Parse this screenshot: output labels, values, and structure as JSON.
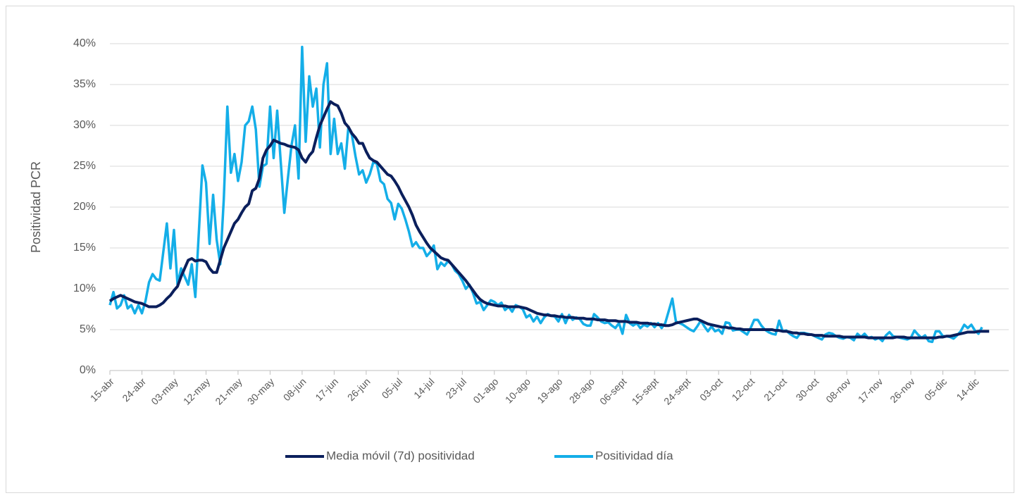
{
  "chart_data": {
    "type": "line",
    "y_label": "Positividad PCR",
    "categories": [
      "15-abr",
      null,
      null,
      null,
      null,
      null,
      null,
      null,
      null,
      "24-abr",
      null,
      null,
      null,
      null,
      null,
      null,
      null,
      null,
      "03-may",
      null,
      null,
      null,
      null,
      null,
      null,
      null,
      null,
      "12-may",
      null,
      null,
      null,
      null,
      null,
      null,
      null,
      null,
      "21-may",
      null,
      null,
      null,
      null,
      null,
      null,
      null,
      null,
      "30-may",
      null,
      null,
      null,
      null,
      null,
      null,
      null,
      null,
      "08-jun",
      null,
      null,
      null,
      null,
      null,
      null,
      null,
      null,
      "17-jun",
      null,
      null,
      null,
      null,
      null,
      null,
      null,
      null,
      "26-jun",
      null,
      null,
      null,
      null,
      null,
      null,
      null,
      null,
      "05-jul",
      null,
      null,
      null,
      null,
      null,
      null,
      null,
      null,
      "14-jul",
      null,
      null,
      null,
      null,
      null,
      null,
      null,
      null,
      "23-jul",
      null,
      null,
      null,
      null,
      null,
      null,
      null,
      null,
      "01-ago",
      null,
      null,
      null,
      null,
      null,
      null,
      null,
      null,
      "10-ago",
      null,
      null,
      null,
      null,
      null,
      null,
      null,
      null,
      "19-ago",
      null,
      null,
      null,
      null,
      null,
      null,
      null,
      null,
      "28-ago",
      null,
      null,
      null,
      null,
      null,
      null,
      null,
      null,
      "06-sept",
      null,
      null,
      null,
      null,
      null,
      null,
      null,
      null,
      "15-sept",
      null,
      null,
      null,
      null,
      null,
      null,
      null,
      null,
      "24-sept",
      null,
      null,
      null,
      null,
      null,
      null,
      null,
      null,
      "03-oct",
      null,
      null,
      null,
      null,
      null,
      null,
      null,
      null,
      "12-oct",
      null,
      null,
      null,
      null,
      null,
      null,
      null,
      null,
      "21-oct",
      null,
      null,
      null,
      null,
      null,
      null,
      null,
      null,
      "30-oct",
      null,
      null,
      null,
      null,
      null,
      null,
      null,
      null,
      "08-nov",
      null,
      null,
      null,
      null,
      null,
      null,
      null,
      null,
      "17-nov",
      null,
      null,
      null,
      null,
      null,
      null,
      null,
      null,
      "26-nov",
      null,
      null,
      null,
      null,
      null,
      null,
      null,
      null,
      "05-dic",
      null,
      null,
      null,
      null,
      null,
      null,
      null,
      null,
      "14-dic",
      null,
      null,
      null,
      null
    ],
    "series": [
      {
        "name": "Media móvil (7d) positividad",
        "color": "#0b1f5c",
        "values": [
          8.5,
          8.8,
          9.0,
          9.2,
          9.0,
          8.8,
          8.6,
          8.4,
          8.3,
          8.2,
          8.0,
          7.8,
          7.8,
          7.8,
          8.0,
          8.3,
          8.8,
          9.2,
          9.8,
          10.3,
          11.5,
          12.5,
          13.5,
          13.7,
          13.4,
          13.5,
          13.5,
          13.3,
          12.5,
          12.0,
          12.0,
          13.5,
          15.0,
          16.0,
          17.0,
          18.0,
          18.5,
          19.3,
          20.0,
          20.4,
          22.0,
          22.3,
          23.5,
          26.0,
          27.0,
          27.5,
          28.2,
          28.0,
          27.8,
          27.7,
          27.5,
          27.4,
          27.3,
          27.0,
          26.0,
          25.5,
          26.3,
          26.8,
          28.5,
          30.0,
          31.0,
          32.0,
          32.9,
          32.6,
          32.4,
          31.5,
          30.3,
          29.8,
          29.0,
          28.5,
          27.8,
          27.8,
          26.8,
          26.0,
          25.7,
          25.5,
          25.0,
          24.5,
          24.0,
          23.8,
          23.2,
          22.5,
          21.6,
          20.8,
          20.0,
          19.0,
          17.8,
          17.0,
          16.3,
          15.6,
          15.0,
          14.6,
          14.2,
          13.8,
          13.6,
          13.5,
          13.0,
          12.5,
          12.0,
          11.5,
          11.0,
          10.4,
          9.8,
          9.2,
          8.7,
          8.4,
          8.2,
          8.1,
          8.0,
          7.9,
          7.9,
          7.9,
          7.8,
          7.8,
          7.8,
          7.8,
          7.7,
          7.6,
          7.4,
          7.2,
          7.0,
          6.9,
          6.8,
          6.8,
          6.7,
          6.7,
          6.6,
          6.6,
          6.5,
          6.5,
          6.5,
          6.4,
          6.4,
          6.4,
          6.3,
          6.3,
          6.3,
          6.2,
          6.2,
          6.2,
          6.1,
          6.1,
          6.1,
          6.0,
          6.0,
          6.0,
          5.9,
          5.9,
          5.9,
          5.8,
          5.8,
          5.8,
          5.7,
          5.7,
          5.6,
          5.6,
          5.5,
          5.5,
          5.6,
          5.8,
          5.9,
          6.0,
          6.1,
          6.2,
          6.3,
          6.3,
          6.1,
          5.9,
          5.7,
          5.6,
          5.5,
          5.4,
          5.3,
          5.3,
          5.2,
          5.2,
          5.1,
          5.1,
          5.0,
          5.0,
          5.0,
          5.0,
          5.0,
          5.0,
          5.0,
          5.0,
          5.0,
          4.9,
          4.9,
          4.8,
          4.8,
          4.7,
          4.6,
          4.6,
          4.5,
          4.5,
          4.4,
          4.4,
          4.3,
          4.3,
          4.3,
          4.2,
          4.2,
          4.2,
          4.2,
          4.2,
          4.1,
          4.1,
          4.1,
          4.1,
          4.1,
          4.1,
          4.1,
          4.0,
          4.0,
          4.0,
          4.0,
          4.0,
          4.0,
          4.0,
          4.0,
          4.1,
          4.1,
          4.1,
          4.0,
          4.0,
          4.0,
          4.0,
          4.0,
          4.0,
          4.0,
          4.0,
          4.0,
          4.1,
          4.1,
          4.2,
          4.2,
          4.3,
          4.4,
          4.5,
          4.6,
          4.7,
          4.7,
          4.7,
          4.8,
          4.8,
          4.8,
          4.8
        ]
      },
      {
        "name": "Positividad día",
        "color": "#14aee8",
        "values": [
          8.0,
          9.6,
          7.6,
          8.0,
          9.2,
          7.6,
          8.0,
          7.0,
          8.0,
          7.0,
          8.5,
          10.8,
          11.8,
          11.2,
          11.0,
          14.5,
          18.0,
          12.5,
          17.2,
          10.5,
          12.5,
          11.5,
          10.5,
          13.0,
          9.0,
          17.0,
          25.1,
          23.0,
          15.5,
          21.5,
          16.0,
          13.0,
          21.0,
          32.3,
          24.2,
          26.5,
          23.2,
          25.5,
          30.0,
          30.5,
          32.3,
          29.5,
          22.5,
          25.0,
          25.3,
          32.3,
          26.0,
          31.8,
          25.5,
          19.3,
          23.5,
          27.5,
          30.0,
          23.5,
          39.6,
          28.0,
          36.0,
          32.3,
          34.5,
          27.3,
          35.0,
          37.6,
          26.5,
          30.8,
          26.5,
          27.8,
          24.7,
          29.8,
          28.8,
          26.2,
          24.0,
          24.5,
          23.0,
          24.0,
          25.5,
          25.3,
          23.2,
          22.8,
          21.0,
          20.5,
          18.5,
          20.4,
          19.8,
          18.5,
          17.0,
          15.2,
          15.7,
          15.0,
          15.0,
          14.0,
          14.5,
          15.3,
          12.4,
          13.2,
          12.8,
          13.4,
          13.0,
          12.2,
          11.8,
          11.0,
          10.0,
          10.5,
          9.5,
          8.2,
          8.4,
          7.4,
          8.0,
          8.6,
          8.4,
          8.0,
          8.3,
          7.4,
          7.8,
          7.2,
          8.0,
          7.8,
          7.5,
          6.5,
          6.8,
          6.0,
          6.6,
          5.8,
          6.5,
          6.9,
          6.7,
          6.6,
          6.0,
          6.9,
          5.8,
          6.8,
          6.2,
          6.5,
          6.3,
          5.7,
          5.5,
          5.5,
          6.9,
          6.5,
          6.0,
          5.8,
          5.9,
          5.5,
          5.2,
          5.8,
          4.5,
          6.8,
          5.8,
          5.5,
          5.8,
          5.2,
          5.6,
          5.4,
          5.8,
          5.3,
          5.8,
          5.2,
          5.8,
          7.3,
          8.8,
          6.0,
          5.8,
          5.6,
          5.3,
          5.0,
          4.8,
          5.4,
          6.1,
          5.4,
          4.8,
          5.4,
          4.8,
          5.0,
          4.5,
          5.9,
          5.8,
          4.9,
          5.0,
          5.0,
          4.7,
          4.4,
          5.2,
          6.2,
          6.2,
          5.5,
          5.0,
          4.7,
          4.5,
          4.4,
          6.1,
          4.8,
          4.9,
          4.5,
          4.2,
          4.0,
          4.6,
          4.6,
          4.5,
          4.4,
          4.2,
          4.0,
          3.8,
          4.4,
          4.6,
          4.5,
          4.2,
          4.0,
          3.9,
          4.1,
          4.0,
          3.7,
          4.5,
          4.1,
          4.5,
          4.0,
          4.1,
          3.8,
          4.0,
          3.6,
          4.3,
          4.7,
          4.2,
          4.1,
          4.0,
          3.9,
          3.8,
          4.0,
          4.9,
          4.4,
          4.0,
          4.3,
          3.6,
          3.5,
          4.8,
          4.8,
          4.2,
          4.2,
          4.1,
          3.9,
          4.3,
          4.8,
          5.6,
          5.2,
          5.6,
          4.9,
          4.5,
          5.3,
          null,
          null
        ]
      }
    ],
    "ylim": [
      0,
      40
    ],
    "yticks": [
      {
        "value": 0,
        "label": "0%"
      },
      {
        "value": 5,
        "label": "5%"
      },
      {
        "value": 10,
        "label": "10%"
      },
      {
        "value": 15,
        "label": "15%"
      },
      {
        "value": 20,
        "label": "20%"
      },
      {
        "value": 25,
        "label": "25%"
      },
      {
        "value": 30,
        "label": "30%"
      },
      {
        "value": 35,
        "label": "35%"
      },
      {
        "value": 40,
        "label": "40%"
      }
    ],
    "grid": true
  }
}
